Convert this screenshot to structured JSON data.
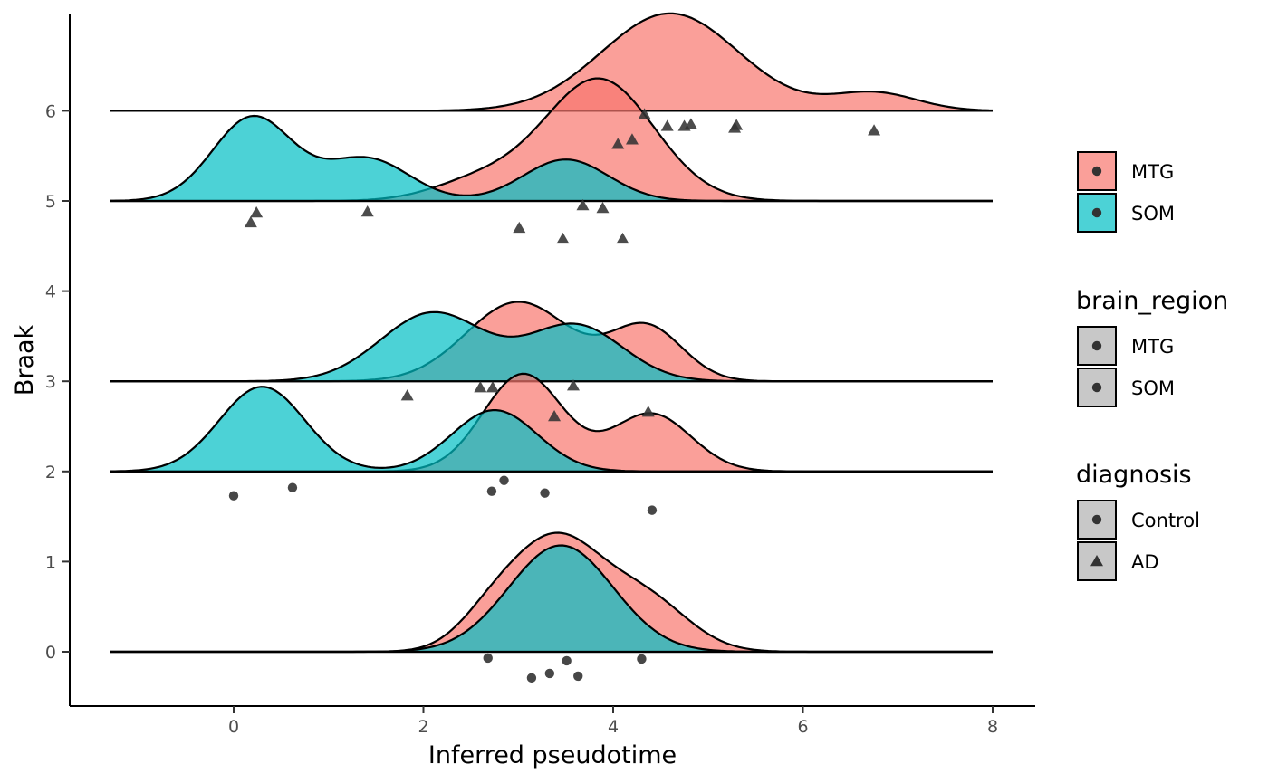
{
  "chart_data": {
    "type": "ridgeline",
    "xlabel": "Inferred pseudotime",
    "ylabel": "Braak",
    "xlim": [
      -1.3,
      8.0
    ],
    "ylim": [
      -0.6,
      7.1
    ],
    "x_ticks": [
      0,
      2,
      4,
      6,
      8
    ],
    "y_ticks": [
      0,
      1,
      2,
      3,
      4,
      5,
      6
    ],
    "grid": false,
    "legend_position": "right",
    "colors": {
      "MTG": "#F8766D",
      "SOM": "#00BFC4",
      "points": "#333333"
    },
    "ridges": [
      {
        "baseline": 6,
        "region": "MTG",
        "peaks": [
          {
            "x": 4.6,
            "height": 1.08,
            "sd": 0.72
          },
          {
            "x": 6.75,
            "height": 0.2,
            "sd": 0.45
          }
        ]
      },
      {
        "baseline": 5,
        "region": "MTG",
        "peaks": [
          {
            "x": 3.85,
            "height": 1.35,
            "sd": 0.58
          },
          {
            "x": 2.6,
            "height": 0.22,
            "sd": 0.5
          }
        ]
      },
      {
        "baseline": 5,
        "region": "SOM",
        "peaks": [
          {
            "x": 0.2,
            "height": 0.93,
            "sd": 0.42
          },
          {
            "x": 1.4,
            "height": 0.47,
            "sd": 0.45
          },
          {
            "x": 3.5,
            "height": 0.46,
            "sd": 0.45
          }
        ]
      },
      {
        "baseline": 3,
        "region": "MTG",
        "peaks": [
          {
            "x": 3.0,
            "height": 0.88,
            "sd": 0.55
          },
          {
            "x": 4.35,
            "height": 0.6,
            "sd": 0.38
          }
        ]
      },
      {
        "baseline": 3,
        "region": "SOM",
        "peaks": [
          {
            "x": 2.1,
            "height": 0.76,
            "sd": 0.55
          },
          {
            "x": 3.6,
            "height": 0.62,
            "sd": 0.5
          }
        ]
      },
      {
        "baseline": 2,
        "region": "MTG",
        "peaks": [
          {
            "x": 3.05,
            "height": 1.08,
            "sd": 0.42
          },
          {
            "x": 4.4,
            "height": 0.64,
            "sd": 0.42
          }
        ]
      },
      {
        "baseline": 2,
        "region": "SOM",
        "peaks": [
          {
            "x": 0.3,
            "height": 0.94,
            "sd": 0.45
          },
          {
            "x": 2.75,
            "height": 0.68,
            "sd": 0.45
          }
        ]
      },
      {
        "baseline": 0,
        "region": "MTG",
        "peaks": [
          {
            "x": 3.4,
            "height": 1.22,
            "sd": 0.48
          },
          {
            "x": 4.35,
            "height": 0.55,
            "sd": 0.45
          },
          {
            "x": 2.7,
            "height": 0.3,
            "sd": 0.35
          }
        ]
      },
      {
        "baseline": 0,
        "region": "SOM",
        "peaks": [
          {
            "x": 3.45,
            "height": 1.18,
            "sd": 0.55
          }
        ]
      }
    ],
    "points": [
      {
        "x": 4.33,
        "y": 5.96,
        "diagnosis": "AD",
        "region": "MTG"
      },
      {
        "x": 4.57,
        "y": 5.83,
        "diagnosis": "AD",
        "region": "MTG"
      },
      {
        "x": 4.75,
        "y": 5.83,
        "diagnosis": "AD",
        "region": "MTG"
      },
      {
        "x": 4.82,
        "y": 5.85,
        "diagnosis": "AD",
        "region": "MTG"
      },
      {
        "x": 5.28,
        "y": 5.81,
        "diagnosis": "AD",
        "region": "MTG"
      },
      {
        "x": 5.3,
        "y": 5.84,
        "diagnosis": "AD",
        "region": "MTG"
      },
      {
        "x": 6.75,
        "y": 5.78,
        "diagnosis": "AD",
        "region": "MTG"
      },
      {
        "x": 4.05,
        "y": 5.63,
        "diagnosis": "AD",
        "region": "MTG"
      },
      {
        "x": 4.2,
        "y": 5.68,
        "diagnosis": "AD",
        "region": "MTG"
      },
      {
        "x": 0.18,
        "y": 4.76,
        "diagnosis": "AD",
        "region": "SOM"
      },
      {
        "x": 0.24,
        "y": 4.87,
        "diagnosis": "AD",
        "region": "SOM"
      },
      {
        "x": 1.41,
        "y": 4.88,
        "diagnosis": "AD",
        "region": "SOM"
      },
      {
        "x": 3.01,
        "y": 4.7,
        "diagnosis": "AD",
        "region": "SOM"
      },
      {
        "x": 3.47,
        "y": 4.58,
        "diagnosis": "AD",
        "region": "SOM"
      },
      {
        "x": 3.68,
        "y": 4.95,
        "diagnosis": "AD",
        "region": "SOM"
      },
      {
        "x": 3.89,
        "y": 4.92,
        "diagnosis": "AD",
        "region": "SOM"
      },
      {
        "x": 4.1,
        "y": 4.58,
        "diagnosis": "AD",
        "region": "SOM"
      },
      {
        "x": 1.83,
        "y": 2.84,
        "diagnosis": "AD",
        "region": "MTG"
      },
      {
        "x": 2.6,
        "y": 2.93,
        "diagnosis": "AD",
        "region": "MTG"
      },
      {
        "x": 2.73,
        "y": 2.93,
        "diagnosis": "AD",
        "region": "MTG"
      },
      {
        "x": 3.58,
        "y": 2.95,
        "diagnosis": "AD",
        "region": "SOM"
      },
      {
        "x": 3.38,
        "y": 2.61,
        "diagnosis": "AD",
        "region": "MTG"
      },
      {
        "x": 4.37,
        "y": 2.66,
        "diagnosis": "AD",
        "region": "MTG"
      },
      {
        "x": 0.0,
        "y": 1.73,
        "diagnosis": "Control",
        "region": "SOM"
      },
      {
        "x": 0.62,
        "y": 1.82,
        "diagnosis": "Control",
        "region": "SOM"
      },
      {
        "x": 2.72,
        "y": 1.78,
        "diagnosis": "Control",
        "region": "MTG"
      },
      {
        "x": 2.85,
        "y": 1.9,
        "diagnosis": "Control",
        "region": "MTG"
      },
      {
        "x": 3.28,
        "y": 1.76,
        "diagnosis": "Control",
        "region": "MTG"
      },
      {
        "x": 4.41,
        "y": 1.57,
        "diagnosis": "Control",
        "region": "MTG"
      },
      {
        "x": 2.68,
        "y": -0.07,
        "diagnosis": "Control",
        "region": "MTG"
      },
      {
        "x": 3.14,
        "y": -0.29,
        "diagnosis": "Control",
        "region": "SOM"
      },
      {
        "x": 3.33,
        "y": -0.24,
        "diagnosis": "Control",
        "region": "SOM"
      },
      {
        "x": 3.51,
        "y": -0.1,
        "diagnosis": "Control",
        "region": "MTG"
      },
      {
        "x": 3.63,
        "y": -0.27,
        "diagnosis": "Control",
        "region": "SOM"
      },
      {
        "x": 4.3,
        "y": -0.08,
        "diagnosis": "Control",
        "region": "MTG"
      }
    ],
    "legends": [
      {
        "title": "",
        "entries": [
          {
            "label": "MTG",
            "fill": "#F8766D",
            "shape": "circle"
          },
          {
            "label": "SOM",
            "fill": "#00BFC4",
            "shape": "circle"
          }
        ]
      },
      {
        "title": "brain_region",
        "entries": [
          {
            "label": "MTG",
            "fill": "#c8c8c8",
            "shape": "circle"
          },
          {
            "label": "SOM",
            "fill": "#c8c8c8",
            "shape": "circle"
          }
        ]
      },
      {
        "title": "diagnosis",
        "entries": [
          {
            "label": "Control",
            "fill": "#c8c8c8",
            "shape": "circle"
          },
          {
            "label": "AD",
            "fill": "#c8c8c8",
            "shape": "triangle"
          }
        ]
      }
    ]
  }
}
